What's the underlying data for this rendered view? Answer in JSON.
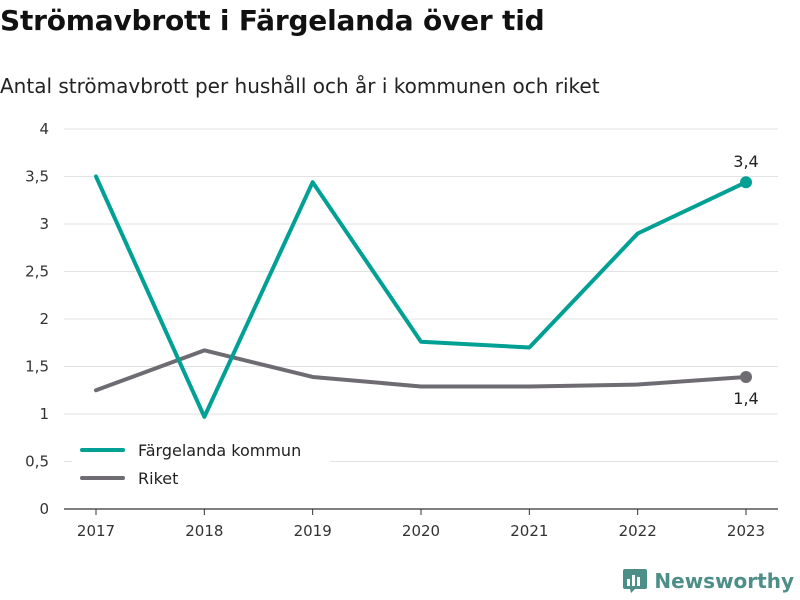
{
  "title": "Strömavbrott i Färgelanda över tid",
  "subtitle": "Antal strömavbrott per hushåll och år i kommunen och riket",
  "brand": {
    "name": "Newsworthy",
    "icon": "newsworthy-logo-icon",
    "color": "#4d8f88"
  },
  "chart_data": {
    "type": "line",
    "x": [
      "2017",
      "2018",
      "2019",
      "2020",
      "2021",
      "2022",
      "2023"
    ],
    "ylim": [
      0,
      4
    ],
    "y_ticks": [
      "0",
      "0,5",
      "1",
      "1,5",
      "2",
      "2,5",
      "3",
      "3,5",
      "4"
    ],
    "grid": true,
    "legend_position": "bottom-left",
    "series": [
      {
        "name": "Färgelanda kommun",
        "color": "#00a095",
        "values": [
          3.5,
          0.97,
          3.44,
          1.76,
          1.7,
          2.9,
          3.44
        ],
        "end_label": "3,4"
      },
      {
        "name": "Riket",
        "color": "#6e6c72",
        "values": [
          1.25,
          1.67,
          1.39,
          1.29,
          1.29,
          1.31,
          1.39
        ],
        "end_label": "1,4"
      }
    ]
  }
}
